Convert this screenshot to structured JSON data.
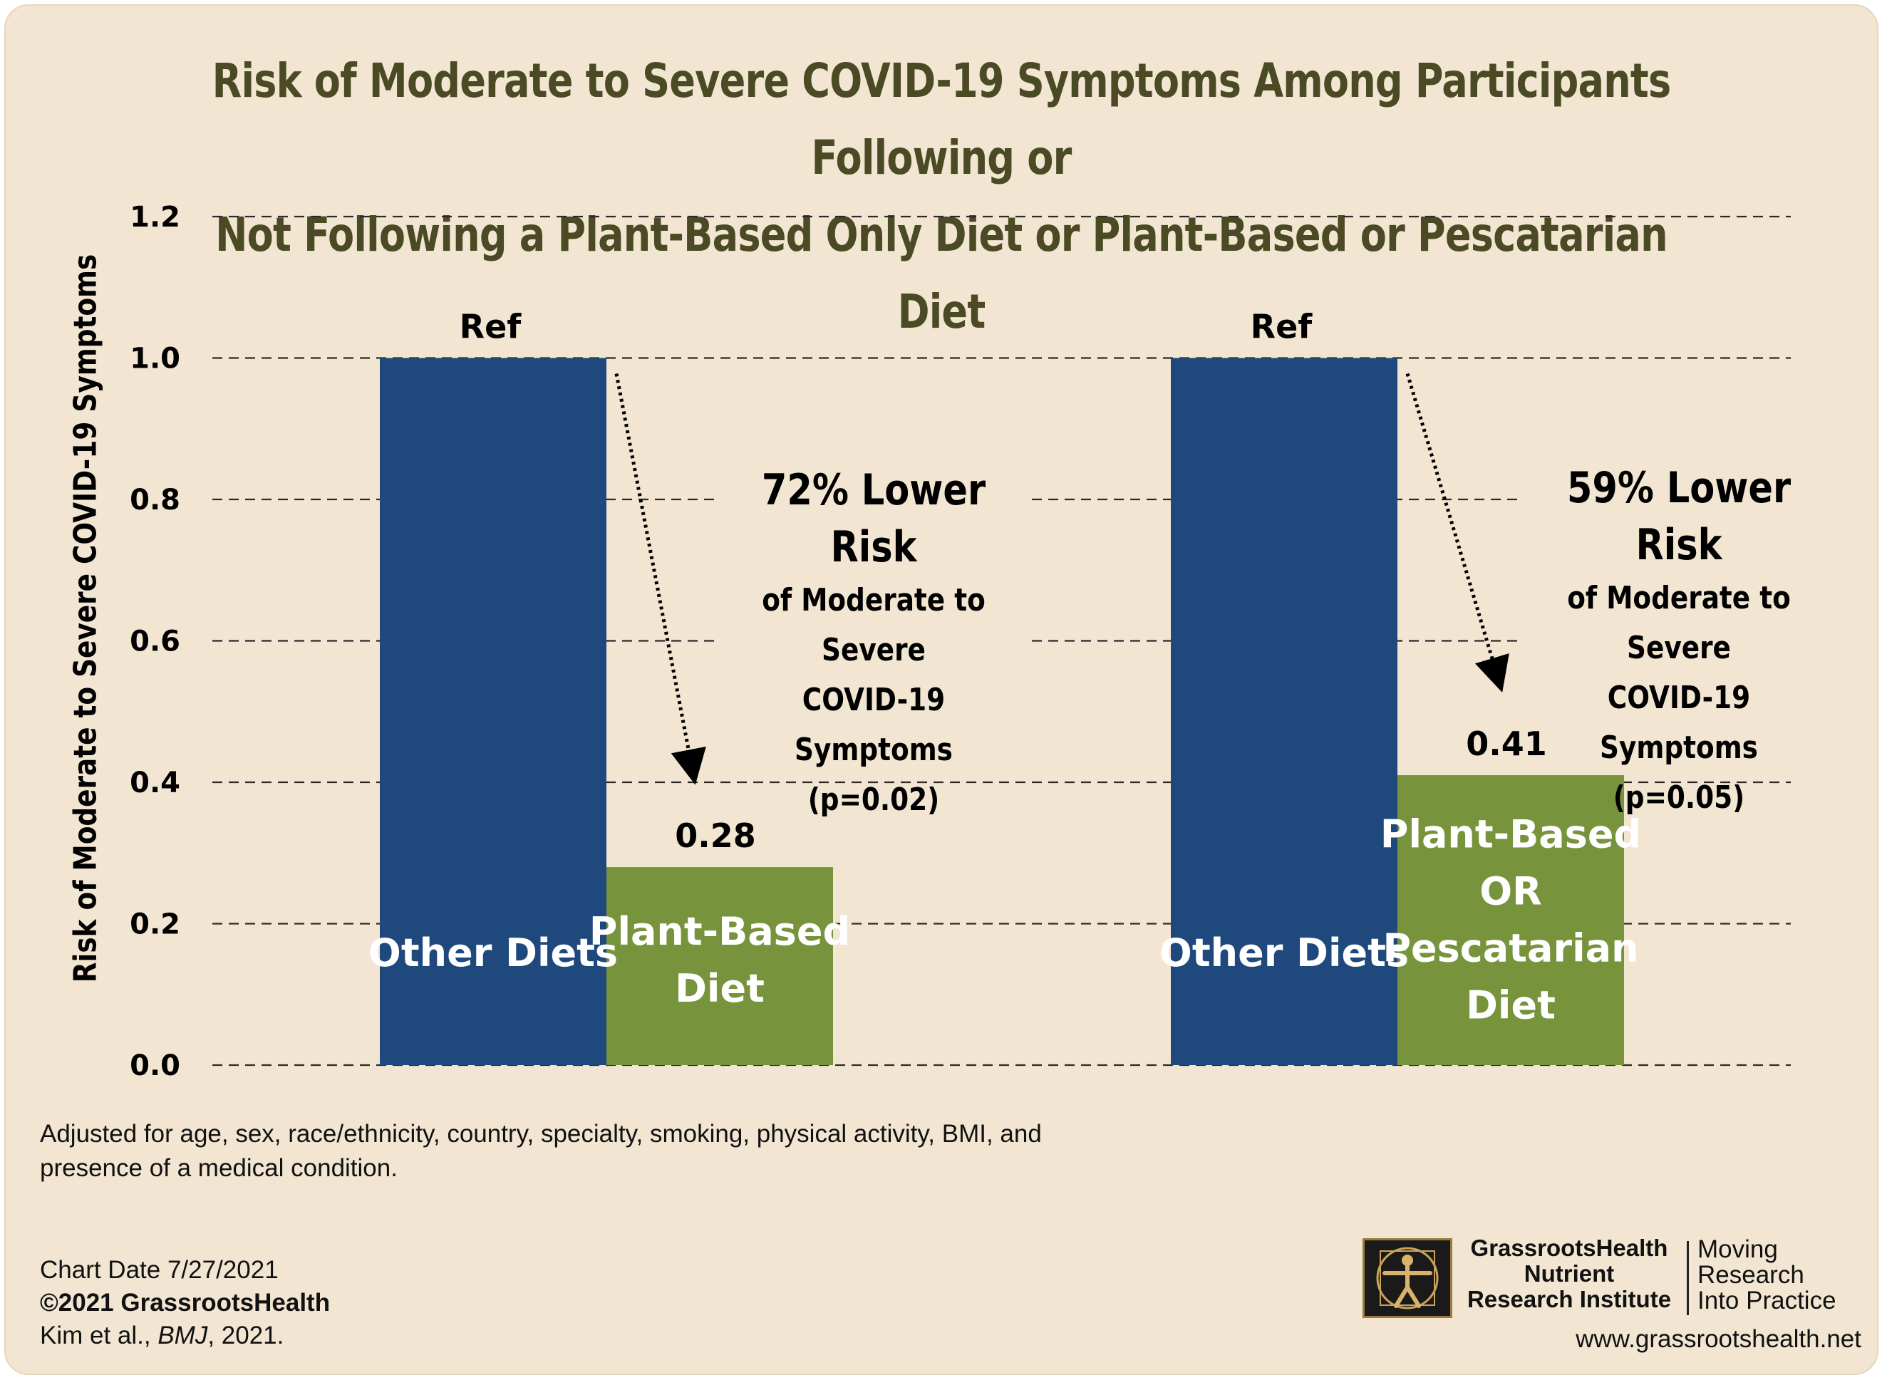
{
  "title_lines": [
    "Risk of Moderate to Severe COVID-19 Symptoms Among Participants Following or",
    "Not Following a Plant-Based Only Diet or Plant-Based or Pescatarian Diet"
  ],
  "colors": {
    "background": "#f2e6d2",
    "reference_bar": "#1f497d",
    "diet_bar": "#77933c",
    "title": "#4a4a24"
  },
  "chart_data": {
    "type": "bar",
    "ylabel": "Risk of Moderate to Severe COVID-19 Symptoms",
    "xlabel": "",
    "ylim": [
      0,
      1.2
    ],
    "y_ticks": [
      "0.0",
      "0.2",
      "0.4",
      "0.6",
      "0.8",
      "1.0",
      "1.2"
    ],
    "grid": true,
    "groups": [
      {
        "bars": [
          {
            "label_lines": [
              "Other Diets"
            ],
            "value": 1.0,
            "value_label": "Ref",
            "kind": "reference"
          },
          {
            "label_lines": [
              "Plant-Based",
              "Diet"
            ],
            "value": 0.28,
            "value_label": "0.28",
            "kind": "diet"
          }
        ],
        "annotation": {
          "headline": "72% Lower Risk",
          "lines": [
            "of Moderate to Severe",
            "COVID-19 Symptoms",
            "(p=0.02)"
          ]
        }
      },
      {
        "bars": [
          {
            "label_lines": [
              "Other Diets"
            ],
            "value": 1.0,
            "value_label": "Ref",
            "kind": "reference"
          },
          {
            "label_lines": [
              "Plant-Based",
              "OR",
              "Pescatarian",
              "Diet"
            ],
            "value": 0.41,
            "value_label": "0.41",
            "kind": "diet"
          }
        ],
        "annotation": {
          "headline": "59% Lower Risk",
          "lines": [
            "of Moderate to Severe",
            "COVID-19 Symptoms",
            "(p=0.05)"
          ]
        }
      }
    ]
  },
  "footnote_lines": [
    "Adjusted for age, sex, race/ethnicity, country, specialty, smoking, physical activity, BMI, and",
    "presence of a medical condition."
  ],
  "credits": {
    "chart_date": "Chart Date 7/27/2021",
    "copyright": "©2021 GrassrootsHealth",
    "citation_authors": "Kim et al., ",
    "citation_journal": "BMJ",
    "citation_year": ", 2021."
  },
  "logo": {
    "name_lines": [
      "GrassrootsHealth",
      "Nutrient",
      "Research Institute"
    ],
    "tagline_lines": [
      "Moving",
      "Research",
      "Into Practice"
    ],
    "url": "www.grassrootshealth.net",
    "icon": "vitruvian-man-icon"
  }
}
